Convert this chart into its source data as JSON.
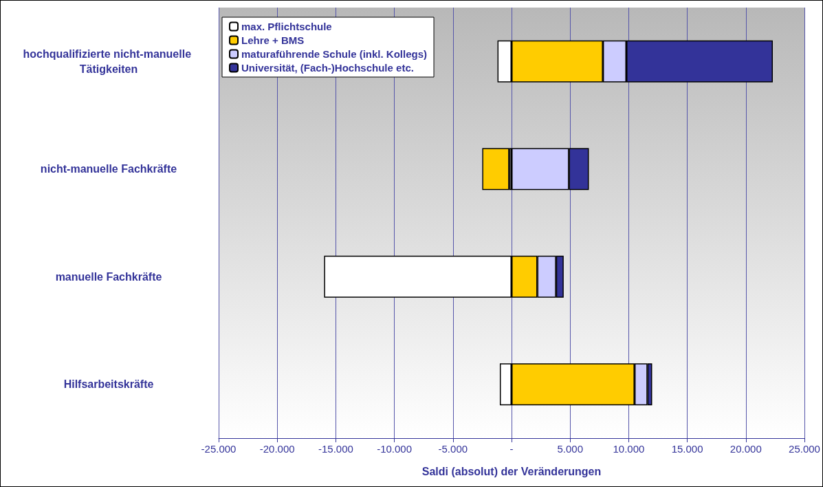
{
  "chart_data": {
    "type": "bar",
    "orientation": "horizontal",
    "stacked": true,
    "xlabel": "Saldi (absolut) der Veränderungen",
    "categories": [
      "hochqualifizierte nicht-manuelle Tätigkeiten",
      "nicht-manuelle Fachkräfte",
      "manuelle Fachkräfte",
      "Hilfsarbeitskräfte"
    ],
    "series": [
      {
        "name": "max. Pflichtschule",
        "color": "#ffffff",
        "values": [
          -1200,
          -200,
          -16000,
          -1000
        ]
      },
      {
        "name": "Lehre + BMS",
        "color": "#ffcc00",
        "values": [
          7800,
          -2300,
          2200,
          10500
        ]
      },
      {
        "name": "maturaführende Schule (inkl. Kollegs)",
        "color": "#ccccff",
        "values": [
          2000,
          4900,
          1600,
          1100
        ]
      },
      {
        "name": "Universität, (Fach-)Hochschule etc.",
        "color": "#333399",
        "values": [
          12500,
          1700,
          650,
          400
        ]
      }
    ],
    "xlim": [
      -25000,
      25000
    ],
    "xticks": [
      {
        "value": -25000,
        "label": "-25.000"
      },
      {
        "value": -20000,
        "label": "-20.000"
      },
      {
        "value": -15000,
        "label": "-15.000"
      },
      {
        "value": -10000,
        "label": "-10.000"
      },
      {
        "value": -5000,
        "label": "-5.000"
      },
      {
        "value": 0,
        "label": "-"
      },
      {
        "value": 5000,
        "label": "5.000"
      },
      {
        "value": 10000,
        "label": "10.000"
      },
      {
        "value": 15000,
        "label": "15.000"
      },
      {
        "value": 20000,
        "label": "20.000"
      },
      {
        "value": 25000,
        "label": "25.000"
      }
    ],
    "grid": "x",
    "legend": "top left"
  }
}
